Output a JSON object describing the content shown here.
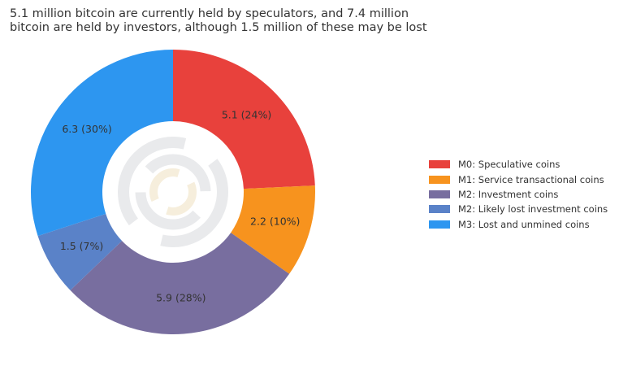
{
  "title_lines": [
    "5.1 million bitcoin are currently held by speculators, and 7.4 million",
    "bitcoin are held by investors, although 1.5 million of these may be lost"
  ],
  "chart_data": {
    "type": "pie",
    "donut": true,
    "title": "5.1 million bitcoin are currently held by speculators, and 7.4 million bitcoin are held by investors, although 1.5 million of these may be lost",
    "categories": [
      "M0: Speculative coins",
      "M1: Service transactional coins",
      "M2: Investment coins",
      "M2: Likely lost investment coins",
      "M3: Lost and unmined coins"
    ],
    "values": [
      5.1,
      2.2,
      5.9,
      1.5,
      6.3
    ],
    "percents": [
      24,
      10,
      28,
      7,
      30
    ],
    "data_labels": [
      "5.1 (24%)",
      "2.2 (10%)",
      "5.9 (28%)",
      "1.5 (7%)",
      "6.3 (30%)"
    ],
    "colors": [
      "#E8413C",
      "#F7931E",
      "#786E9F",
      "#5A82C8",
      "#2D96F0"
    ],
    "legend_position": "right"
  }
}
